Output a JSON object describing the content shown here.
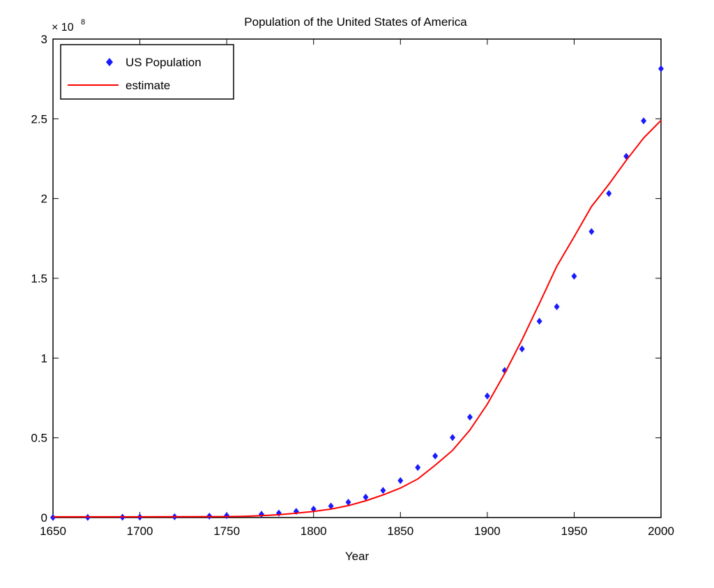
{
  "chart_data": {
    "type": "line",
    "title": "Population of the United States of America",
    "xlabel": "Year",
    "ylabel": "",
    "y_scale_label": "× 10",
    "y_scale_exponent": "8",
    "y_multiplier": 100000000,
    "xlim": [
      1650,
      2000
    ],
    "ylim": [
      0,
      3
    ],
    "xticks": [
      1650,
      1700,
      1750,
      1800,
      1850,
      1900,
      1950,
      2000
    ],
    "yticks": [
      0,
      0.5,
      1,
      1.5,
      2,
      2.5,
      3
    ],
    "xtick_labels": [
      "1650",
      "1700",
      "1750",
      "1800",
      "1850",
      "1900",
      "1950",
      "2000"
    ],
    "ytick_labels": [
      "0",
      "0.5",
      "1",
      "1.5",
      "2",
      "2.5",
      "3"
    ],
    "grid": false,
    "legend_position": "top-left",
    "series": [
      {
        "name": "US Population",
        "style": "markers",
        "color": "#1a1aff",
        "x": [
          1650,
          1670,
          1690,
          1700,
          1720,
          1740,
          1750,
          1770,
          1780,
          1790,
          1800,
          1810,
          1820,
          1830,
          1840,
          1850,
          1860,
          1870,
          1880,
          1890,
          1900,
          1910,
          1920,
          1930,
          1940,
          1950,
          1960,
          1970,
          1980,
          1990,
          2000
        ],
        "y": [
          0.0005,
          0.001,
          0.002,
          0.003,
          0.005,
          0.009,
          0.012,
          0.021,
          0.028,
          0.039,
          0.053,
          0.072,
          0.096,
          0.128,
          0.17,
          0.232,
          0.314,
          0.386,
          0.502,
          0.63,
          0.762,
          0.922,
          1.057,
          1.231,
          1.322,
          1.513,
          1.793,
          2.032,
          2.265,
          2.487,
          2.814
        ]
      },
      {
        "name": "estimate",
        "style": "line",
        "color": "#ff0000",
        "x": [
          1650,
          1700,
          1750,
          1760,
          1770,
          1780,
          1790,
          1800,
          1810,
          1820,
          1830,
          1840,
          1850,
          1860,
          1870,
          1880,
          1890,
          1900,
          1910,
          1920,
          1930,
          1940,
          1950,
          1960,
          1970,
          1980,
          1990,
          2000
        ],
        "y": [
          0.005,
          0.005,
          0.006,
          0.008,
          0.012,
          0.018,
          0.027,
          0.038,
          0.053,
          0.075,
          0.105,
          0.142,
          0.185,
          0.242,
          0.328,
          0.421,
          0.549,
          0.711,
          0.903,
          1.115,
          1.342,
          1.575,
          1.76,
          1.95,
          2.09,
          2.24,
          2.38,
          2.49
        ]
      }
    ]
  }
}
